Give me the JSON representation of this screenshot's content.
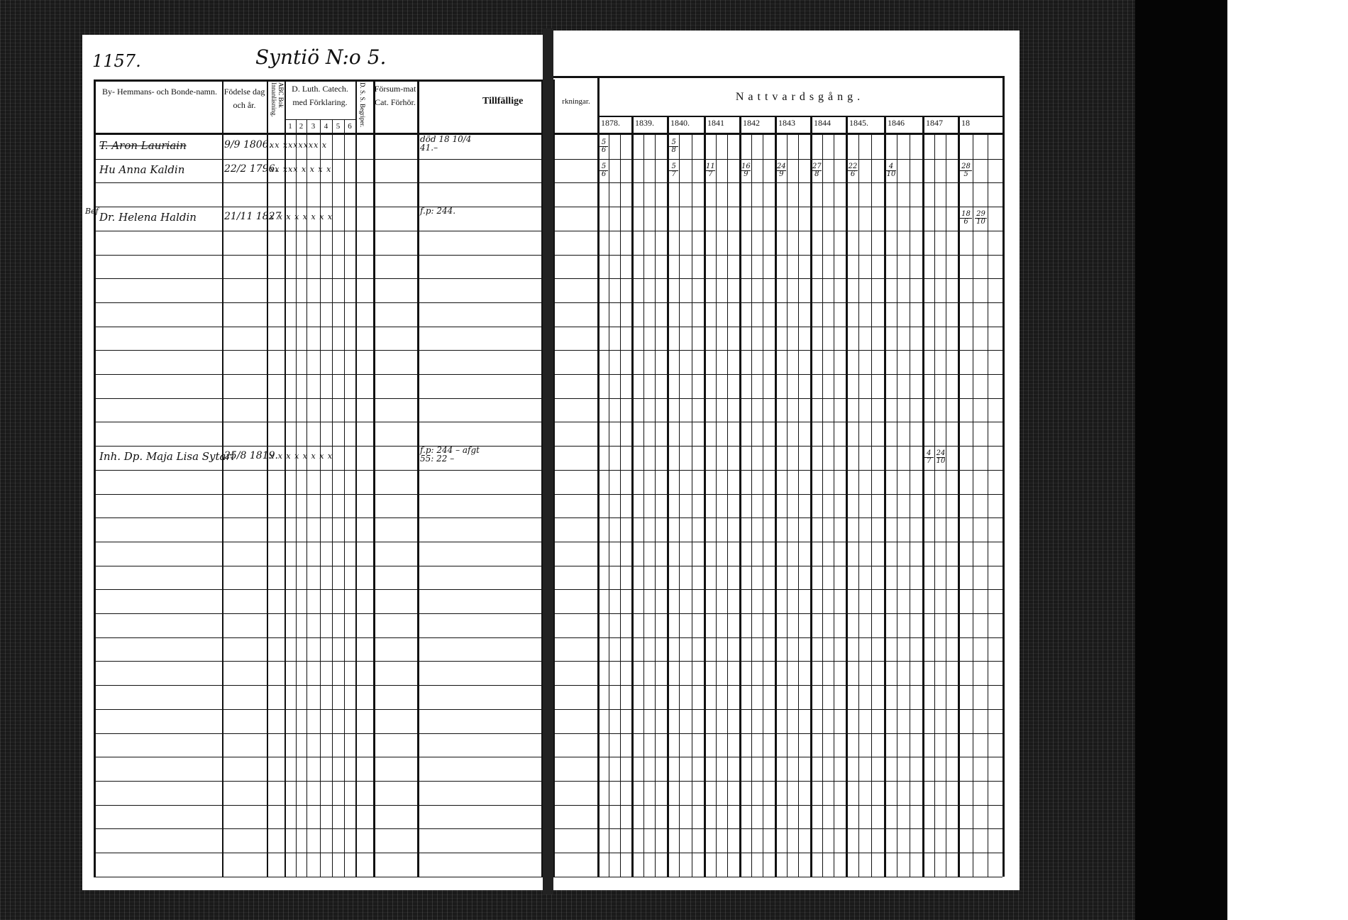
{
  "left_page": {
    "page_number": "1157.",
    "village_heading": "Syntiö N:o 5.",
    "headers": {
      "name": "By- Hemmans- och Bonde-namn.",
      "birth": "Födelse dag och år.",
      "abc": "ABC Bok Innanläsning.",
      "catech": "D. Luth. Catech. med Förklaring.",
      "catech_cols": [
        "1",
        "2",
        "3",
        "4",
        "5",
        "6"
      ],
      "dss": "D. S. S. Begriper.",
      "forsummat": "Försum-mat Cat. Förhör.",
      "tillfallige": "Tillfällige"
    },
    "entries": [
      {
        "row": 0,
        "name": "T. Aron Lauriain",
        "struck": true,
        "birth": "9/9 1806.",
        "marks": "xx xxxxxxx x",
        "note": "död 18 10/4 41.–"
      },
      {
        "row": 1,
        "name": "Hu Anna Kaldin",
        "struck": false,
        "birth": "22/2 1796.",
        "marks": "xx xxx x x x x",
        "note": ""
      },
      {
        "row": 3,
        "name": "Dr. Helena Haldin",
        "prefix": "Bef",
        "struck": false,
        "birth": "21/11 1827",
        "marks": "x x x x x x x x",
        "note": "f.p: 244."
      },
      {
        "row": 13,
        "name": "Inh. Dp. Maja Lisa Sytari",
        "struck": false,
        "birth": "25/8 1819.",
        "marks": "x x x x x x x x",
        "note": "f.p: 244 – afgt 55: 22 –"
      }
    ]
  },
  "right_page": {
    "headers": {
      "anmarkningar": "rkningar.",
      "nattvard": "Nattvardsgång.",
      "years": [
        "1878.",
        "1839.",
        "1840.",
        "1841",
        "1842",
        "1843",
        "1844",
        "1845.",
        "1846",
        "1847",
        "18"
      ]
    },
    "communion_entries": [
      {
        "row": 0,
        "year": 0,
        "sub": 0,
        "date": [
          "5",
          "6"
        ]
      },
      {
        "row": 0,
        "year": 2,
        "sub": 0,
        "date": [
          "5",
          "8"
        ]
      },
      {
        "row": 1,
        "year": 0,
        "sub": 0,
        "date": [
          "5",
          "6"
        ]
      },
      {
        "row": 1,
        "year": 2,
        "sub": 0,
        "date": [
          "5",
          "7"
        ]
      },
      {
        "row": 1,
        "year": 3,
        "sub": 0,
        "date": [
          "11",
          "7"
        ]
      },
      {
        "row": 1,
        "year": 4,
        "sub": 0,
        "date": [
          "16",
          "9"
        ]
      },
      {
        "row": 1,
        "year": 5,
        "sub": 0,
        "date": [
          "24",
          "9"
        ]
      },
      {
        "row": 1,
        "year": 6,
        "sub": 0,
        "date": [
          "27",
          "8"
        ]
      },
      {
        "row": 1,
        "year": 7,
        "sub": 0,
        "date": [
          "22",
          "6"
        ]
      },
      {
        "row": 1,
        "year": 8,
        "sub": 0,
        "date": [
          "4",
          "10"
        ]
      },
      {
        "row": 1,
        "year": 10,
        "sub": 0,
        "date": [
          "28",
          "5"
        ]
      },
      {
        "row": 3,
        "year": 10,
        "sub": 0,
        "date": [
          "18",
          "6"
        ]
      },
      {
        "row": 3,
        "year": 10,
        "sub": 1,
        "date": [
          "29",
          "10"
        ]
      },
      {
        "row": 13,
        "year": 9,
        "sub": 0,
        "date": [
          "4",
          "7"
        ]
      },
      {
        "row": 13,
        "year": 9,
        "sub": 1,
        "date": [
          "24",
          "10"
        ]
      }
    ]
  }
}
